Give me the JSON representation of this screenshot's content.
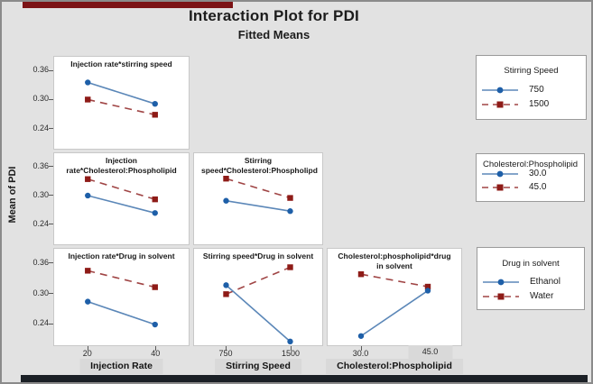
{
  "frame": {
    "title": "Interaction Plot for PDI",
    "subtitle": "Fitted Means"
  },
  "decor": {
    "canvas_bg": "#e2e2e2",
    "top_bar_color": "#7c1316",
    "bottom_bar_color": "#1b2026",
    "label_box_bg": "#d9d9d9"
  },
  "chart_data": {
    "type": "line",
    "title": "Interaction Plot for PDI",
    "subtitle": "Fitted Means",
    "ylabel": "Mean of PDI",
    "yticks": [
      "0.36",
      "0.30",
      "0.24"
    ],
    "ytick_values": [
      0.36,
      0.3,
      0.24
    ],
    "ylim": [
      0.2,
      0.39
    ],
    "grid": false,
    "legend_position": "right",
    "colors": {
      "blue_line": "#5b87b8",
      "blue_marker": "#1e5fa8",
      "red_line": "#a04545",
      "red_marker": "#8e1b17"
    },
    "x_factors": [
      {
        "label": "Injection Rate",
        "ticks": [
          "20",
          "40"
        ]
      },
      {
        "label": "Stirring Speed",
        "ticks": [
          "750",
          "1500"
        ]
      },
      {
        "label": "Cholesterol:Phospholipid",
        "ticks": [
          "30.0",
          "45.0"
        ],
        "boxed_tick_index": 1
      }
    ],
    "panels": [
      {
        "row": 0,
        "col": 0,
        "title": "Injection rate*stirring speed",
        "x": [
          "20",
          "40"
        ],
        "series": [
          {
            "name": "750",
            "style": "blue",
            "values": [
              0.335,
              0.29
            ]
          },
          {
            "name": "1500",
            "style": "red",
            "values": [
              0.299,
              0.267
            ]
          }
        ]
      },
      {
        "row": 1,
        "col": 0,
        "title": "Injection rate*Cholesterol:Phospholipid",
        "x": [
          "20",
          "40"
        ],
        "series": [
          {
            "name": "30.0",
            "style": "blue",
            "values": [
              0.299,
              0.262
            ]
          },
          {
            "name": "45.0",
            "style": "red",
            "values": [
              0.334,
              0.291
            ]
          }
        ]
      },
      {
        "row": 1,
        "col": 1,
        "title": "Stirring speed*Cholesterol:Phospholipd",
        "x": [
          "750",
          "1500"
        ],
        "series": [
          {
            "name": "30.0",
            "style": "blue",
            "values": [
              0.288,
              0.266
            ]
          },
          {
            "name": "45.0",
            "style": "red",
            "values": [
              0.335,
              0.294
            ]
          }
        ]
      },
      {
        "row": 2,
        "col": 0,
        "title": "Injection rate*Drug in solvent",
        "x": [
          "20",
          "40"
        ],
        "series": [
          {
            "name": "Ethanol",
            "style": "blue",
            "values": [
              0.283,
              0.237
            ]
          },
          {
            "name": "Water",
            "style": "red",
            "values": [
              0.345,
              0.312
            ]
          }
        ]
      },
      {
        "row": 2,
        "col": 1,
        "title": "Stirring speed*Drug in solvent",
        "x": [
          "750",
          "1500"
        ],
        "series": [
          {
            "name": "Ethanol",
            "style": "blue",
            "values": [
              0.316,
              0.203
            ]
          },
          {
            "name": "Water",
            "style": "red",
            "values": [
              0.298,
              0.352
            ]
          }
        ]
      },
      {
        "row": 2,
        "col": 2,
        "title": "Cholesterol:phospholipid*drug in solvent",
        "x": [
          "30.0",
          "45.0"
        ],
        "series": [
          {
            "name": "Ethanol",
            "style": "blue",
            "values": [
              0.214,
              0.305
            ]
          },
          {
            "name": "Water",
            "style": "red",
            "values": [
              0.338,
              0.313
            ]
          }
        ]
      }
    ],
    "legends": [
      {
        "title": "Stirring Speed",
        "items": [
          {
            "label": "750",
            "style": "blue"
          },
          {
            "label": "1500",
            "style": "red"
          }
        ]
      },
      {
        "title": "Cholesterol:Phospholipid",
        "items": [
          {
            "label": "30.0",
            "style": "blue"
          },
          {
            "label": "45.0",
            "style": "red"
          }
        ]
      },
      {
        "title": "Drug in solvent",
        "items": [
          {
            "label": "Ethanol",
            "style": "blue"
          },
          {
            "label": "Water",
            "style": "red"
          }
        ]
      }
    ]
  }
}
